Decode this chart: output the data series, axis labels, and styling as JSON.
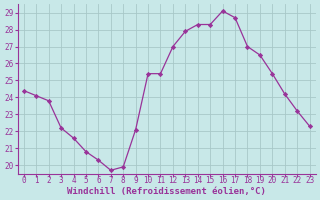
{
  "x": [
    0,
    1,
    2,
    3,
    4,
    5,
    6,
    7,
    8,
    9,
    10,
    11,
    12,
    13,
    14,
    15,
    16,
    17,
    18,
    19,
    20,
    21,
    22,
    23
  ],
  "y": [
    24.4,
    24.1,
    23.8,
    22.2,
    21.6,
    20.8,
    20.3,
    19.7,
    19.9,
    22.1,
    25.4,
    25.4,
    27.0,
    27.9,
    28.3,
    28.3,
    29.1,
    28.7,
    27.0,
    26.5,
    25.4,
    24.2,
    23.2,
    22.3
  ],
  "line_color": "#993399",
  "marker_color": "#993399",
  "bg_color": "#c8e8e8",
  "grid_color": "#a8c8c8",
  "xlabel": "Windchill (Refroidissement éolien,°C)",
  "yticks": [
    20,
    21,
    22,
    23,
    24,
    25,
    26,
    27,
    28,
    29
  ],
  "xticks": [
    0,
    1,
    2,
    3,
    4,
    5,
    6,
    7,
    8,
    9,
    10,
    11,
    12,
    13,
    14,
    15,
    16,
    17,
    18,
    19,
    20,
    21,
    22,
    23
  ],
  "ylim": [
    19.5,
    29.5
  ],
  "xlim": [
    -0.5,
    23.5
  ],
  "tick_color": "#993399",
  "label_color": "#993399",
  "tick_fontsize": 5.5,
  "xlabel_fontsize": 6.5
}
